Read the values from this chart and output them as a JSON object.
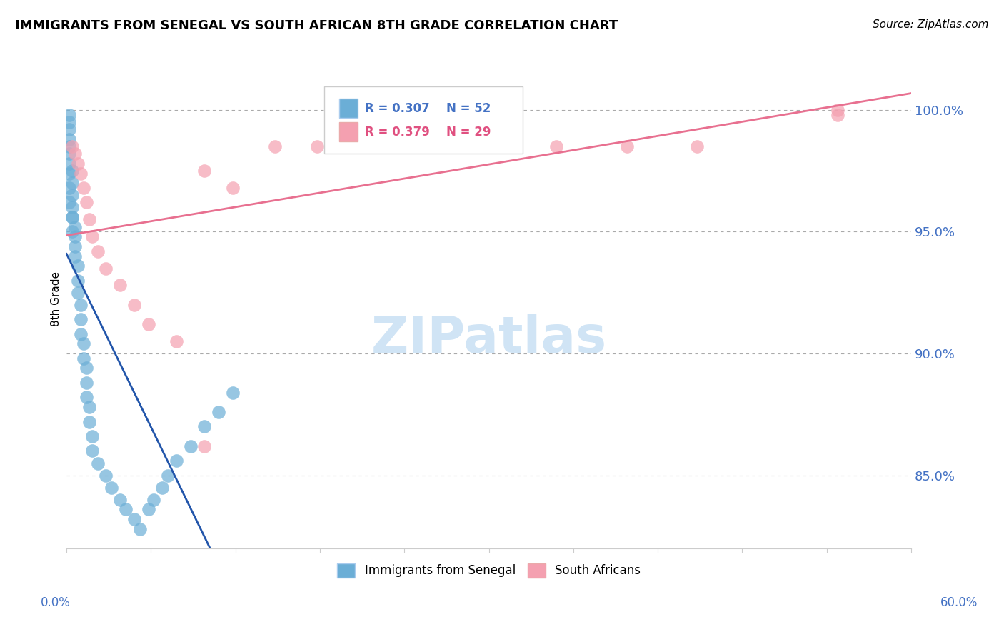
{
  "title": "IMMIGRANTS FROM SENEGAL VS SOUTH AFRICAN 8TH GRADE CORRELATION CHART",
  "source": "Source: ZipAtlas.com",
  "ylabel_label": "8th Grade",
  "legend_blue_r": "R = 0.307",
  "legend_blue_n": "N = 52",
  "legend_pink_r": "R = 0.379",
  "legend_pink_n": "N = 29",
  "legend_label_blue": "Immigrants from Senegal",
  "legend_label_pink": "South Africans",
  "blue_color": "#6baed6",
  "pink_color": "#f4a0b0",
  "blue_line_color": "#2255aa",
  "pink_line_color": "#e87090",
  "blue_legend_text_color": "#4472c4",
  "pink_legend_text_color": "#e05080",
  "ytick_color": "#4472c4",
  "xtick_color": "#4472c4",
  "watermark_color": "#d0e4f5",
  "xlim": [
    0.0,
    0.6
  ],
  "ylim": [
    0.82,
    1.025
  ],
  "ytick_vals": [
    0.85,
    0.9,
    0.95,
    1.0
  ],
  "ytick_labels": [
    "85.0%",
    "90.0%",
    "95.0%",
    "100.0%"
  ],
  "blue_x": [
    0.002,
    0.002,
    0.002,
    0.002,
    0.002,
    0.002,
    0.002,
    0.004,
    0.004,
    0.004,
    0.004,
    0.004,
    0.006,
    0.006,
    0.006,
    0.006,
    0.008,
    0.008,
    0.008,
    0.01,
    0.01,
    0.01,
    0.012,
    0.012,
    0.014,
    0.014,
    0.014,
    0.016,
    0.016,
    0.018,
    0.018,
    0.022,
    0.028,
    0.032,
    0.038,
    0.042,
    0.048,
    0.052,
    0.058,
    0.062,
    0.068,
    0.072,
    0.078,
    0.088,
    0.098,
    0.108,
    0.118,
    0.002,
    0.002,
    0.002,
    0.004,
    0.004
  ],
  "blue_y": [
    0.998,
    0.995,
    0.992,
    0.988,
    0.985,
    0.982,
    0.978,
    0.975,
    0.97,
    0.965,
    0.96,
    0.956,
    0.952,
    0.948,
    0.944,
    0.94,
    0.936,
    0.93,
    0.925,
    0.92,
    0.914,
    0.908,
    0.904,
    0.898,
    0.894,
    0.888,
    0.882,
    0.878,
    0.872,
    0.866,
    0.86,
    0.855,
    0.85,
    0.845,
    0.84,
    0.836,
    0.832,
    0.828,
    0.836,
    0.84,
    0.845,
    0.85,
    0.856,
    0.862,
    0.87,
    0.876,
    0.884,
    0.974,
    0.968,
    0.962,
    0.956,
    0.95
  ],
  "pink_x": [
    0.004,
    0.006,
    0.008,
    0.01,
    0.012,
    0.014,
    0.016,
    0.018,
    0.022,
    0.028,
    0.038,
    0.048,
    0.058,
    0.078,
    0.098,
    0.148,
    0.178,
    0.198,
    0.218,
    0.248,
    0.278,
    0.308,
    0.348,
    0.398,
    0.448,
    0.548,
    0.548,
    0.098,
    0.118
  ],
  "pink_y": [
    0.985,
    0.982,
    0.978,
    0.974,
    0.968,
    0.962,
    0.955,
    0.948,
    0.942,
    0.935,
    0.928,
    0.92,
    0.912,
    0.905,
    0.862,
    0.985,
    0.985,
    0.985,
    0.985,
    0.985,
    0.985,
    0.985,
    0.985,
    0.985,
    0.985,
    1.0,
    0.998,
    0.975,
    0.968
  ]
}
